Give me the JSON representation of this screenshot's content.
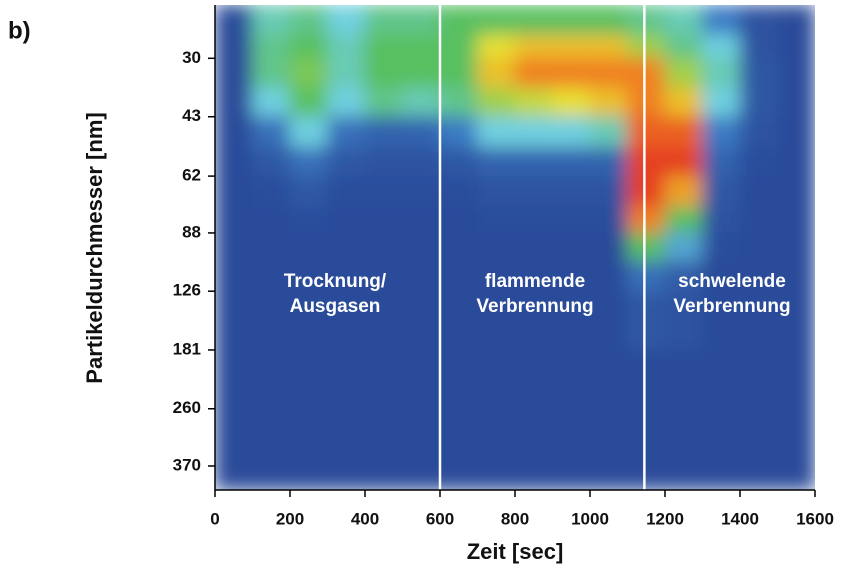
{
  "chart_data": {
    "type": "heatmap",
    "panel_label": "b)",
    "x_label": "Zeit [sec]",
    "y_label": "Partikeldurchmesser [nm]",
    "xlim": [
      0,
      1600
    ],
    "xticks": [
      0,
      200,
      400,
      600,
      800,
      1000,
      1200,
      1400,
      1600
    ],
    "ylim": [
      429,
      21.6
    ],
    "y_log": true,
    "yticks": [
      30,
      43,
      62,
      88,
      126,
      181,
      260,
      370
    ],
    "x_edges": [
      0,
      100,
      200,
      300,
      400,
      500,
      600,
      700,
      800,
      900,
      1000,
      1100,
      1200,
      1300,
      1400,
      1500,
      1600
    ],
    "y_edges": [
      21.6,
      26,
      30,
      36,
      43,
      52,
      62,
      75,
      88,
      105,
      126,
      181,
      260,
      429
    ],
    "z": [
      [
        0.05,
        0.4,
        0.45,
        0.35,
        0.45,
        0.45,
        0.5,
        0.5,
        0.5,
        0.5,
        0.5,
        0.45,
        0.4,
        0.25,
        0.08,
        0.05
      ],
      [
        0.05,
        0.45,
        0.5,
        0.4,
        0.5,
        0.5,
        0.5,
        0.7,
        0.75,
        0.75,
        0.75,
        0.6,
        0.45,
        0.35,
        0.08,
        0.05
      ],
      [
        0.05,
        0.45,
        0.55,
        0.4,
        0.5,
        0.5,
        0.5,
        0.75,
        0.85,
        0.85,
        0.85,
        0.85,
        0.6,
        0.4,
        0.1,
        0.05
      ],
      [
        0.05,
        0.35,
        0.5,
        0.35,
        0.45,
        0.4,
        0.45,
        0.6,
        0.65,
        0.7,
        0.75,
        0.85,
        0.75,
        0.35,
        0.1,
        0.05
      ],
      [
        0.05,
        0.2,
        0.35,
        0.2,
        0.15,
        0.15,
        0.25,
        0.35,
        0.35,
        0.35,
        0.4,
        0.9,
        0.9,
        0.25,
        0.08,
        0.05
      ],
      [
        0.05,
        0.1,
        0.2,
        0.1,
        0.08,
        0.08,
        0.1,
        0.15,
        0.15,
        0.15,
        0.15,
        0.95,
        0.95,
        0.15,
        0.06,
        0.05
      ],
      [
        0.05,
        0.06,
        0.1,
        0.06,
        0.06,
        0.06,
        0.06,
        0.08,
        0.08,
        0.08,
        0.08,
        0.95,
        0.8,
        0.1,
        0.05,
        0.05
      ],
      [
        0.05,
        0.05,
        0.06,
        0.05,
        0.05,
        0.05,
        0.05,
        0.06,
        0.06,
        0.06,
        0.06,
        0.85,
        0.5,
        0.08,
        0.05,
        0.05
      ],
      [
        0.05,
        0.05,
        0.05,
        0.05,
        0.05,
        0.05,
        0.05,
        0.05,
        0.05,
        0.05,
        0.05,
        0.5,
        0.3,
        0.06,
        0.05,
        0.05
      ],
      [
        0.05,
        0.05,
        0.05,
        0.05,
        0.05,
        0.05,
        0.05,
        0.05,
        0.05,
        0.05,
        0.05,
        0.2,
        0.12,
        0.05,
        0.05,
        0.05
      ],
      [
        0.05,
        0.05,
        0.05,
        0.05,
        0.05,
        0.05,
        0.05,
        0.05,
        0.05,
        0.05,
        0.05,
        0.1,
        0.08,
        0.05,
        0.05,
        0.05
      ],
      [
        0.05,
        0.05,
        0.05,
        0.05,
        0.05,
        0.05,
        0.05,
        0.05,
        0.05,
        0.05,
        0.05,
        0.05,
        0.05,
        0.05,
        0.05,
        0.05
      ],
      [
        0.05,
        0.05,
        0.05,
        0.05,
        0.05,
        0.05,
        0.05,
        0.05,
        0.05,
        0.05,
        0.05,
        0.05,
        0.05,
        0.05,
        0.05,
        0.05
      ]
    ],
    "colorscale": [
      [
        0,
        "#26408f"
      ],
      [
        0.25,
        "#3b7cc4"
      ],
      [
        0.35,
        "#6fd0e0"
      ],
      [
        0.5,
        "#58c060"
      ],
      [
        0.7,
        "#e8e030"
      ],
      [
        0.85,
        "#f08020"
      ],
      [
        1,
        "#e02020"
      ]
    ],
    "vlines": [
      600,
      1145
    ],
    "vline_color": "#ffffff",
    "annotations": [
      [
        "Trocknung/",
        "Ausgasen"
      ],
      [
        "flammende",
        "Verbrennung"
      ],
      [
        "schwelende",
        "Verbrennung"
      ]
    ]
  }
}
